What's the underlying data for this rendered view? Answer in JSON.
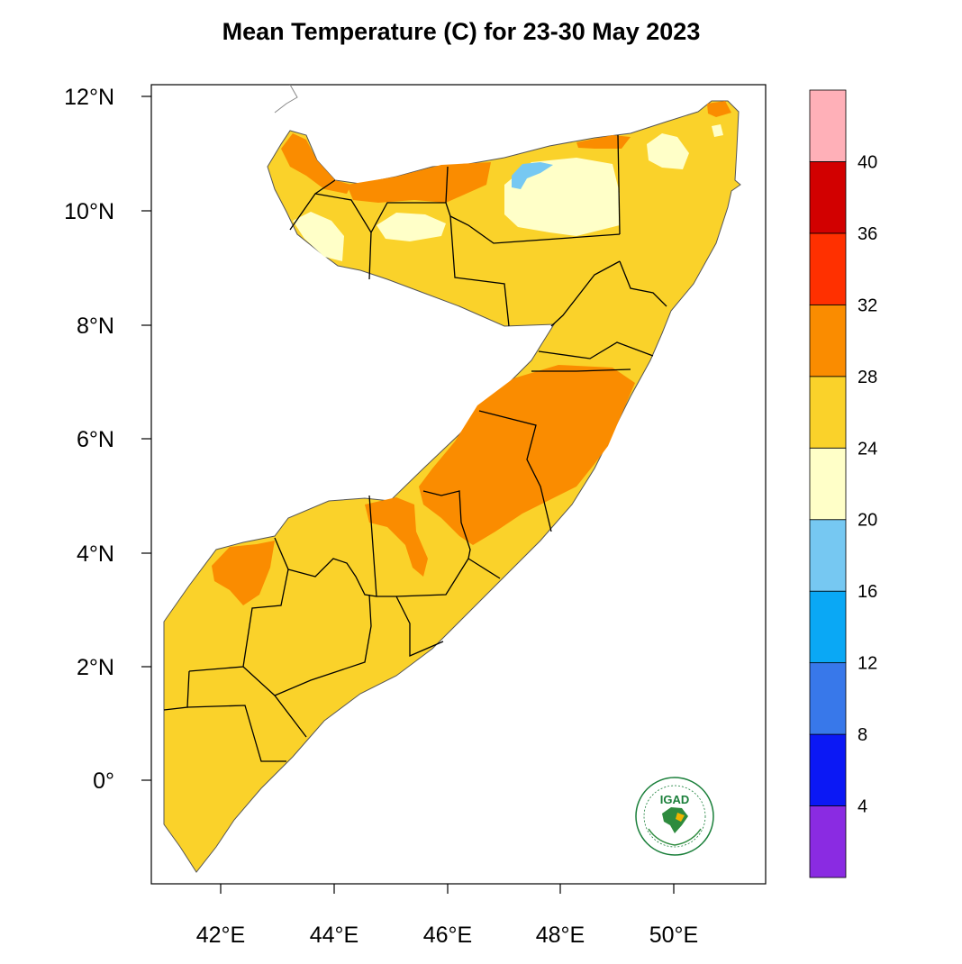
{
  "title": "Mean Temperature (C) for 23-30 May 2023",
  "map": {
    "region": "Somalia",
    "lon_range": [
      41,
      51.5
    ],
    "lat_range": [
      -1.8,
      12.1
    ],
    "x_ticks": [
      {
        "value": 42,
        "label": "42°E"
      },
      {
        "value": 44,
        "label": "44°E"
      },
      {
        "value": 46,
        "label": "46°E"
      },
      {
        "value": 48,
        "label": "48°E"
      },
      {
        "value": 50,
        "label": "50°E"
      }
    ],
    "y_ticks": [
      {
        "value": 12,
        "label": "12°N"
      },
      {
        "value": 10,
        "label": "10°N"
      },
      {
        "value": 8,
        "label": "8°N"
      },
      {
        "value": 6,
        "label": "6°N"
      },
      {
        "value": 4,
        "label": "4°N"
      },
      {
        "value": 2,
        "label": "2°N"
      },
      {
        "value": 0,
        "label": "0°"
      }
    ],
    "dominant_range": "24-28",
    "hot_areas_range": "28-32",
    "cool_areas_range": "20-24"
  },
  "colorbar": {
    "labels": [
      "4",
      "8",
      "12",
      "16",
      "20",
      "24",
      "28",
      "32",
      "36",
      "40"
    ],
    "colors": [
      "#8a2be2",
      "#0b18f5",
      "#3878ea",
      "#0aa8f5",
      "#76c8f2",
      "#ffffc8",
      "#fad22a",
      "#fa8c00",
      "#ff3000",
      "#d20000",
      "#ffb0b8"
    ]
  },
  "logo": {
    "text": "IGAD"
  }
}
